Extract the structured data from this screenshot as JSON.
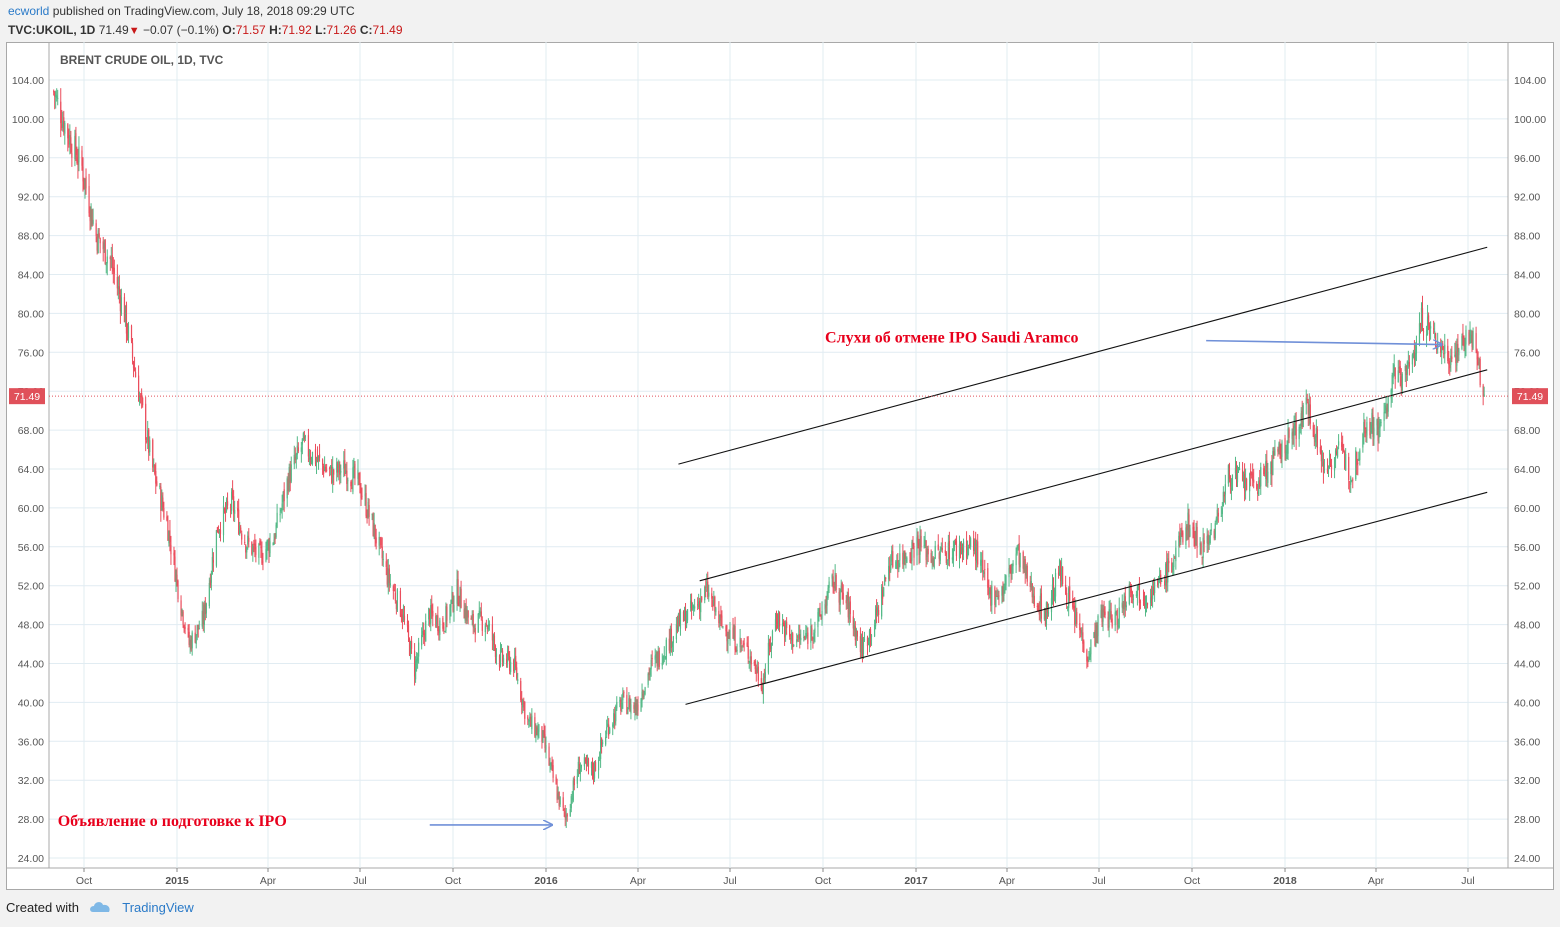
{
  "header": {
    "author": "ecworld",
    "published": " published on TradingView.com, July 18, 2018 09:29 UTC",
    "symbol": "TVC:UKOIL, 1D",
    "last": "71.49",
    "change_arrow": "▼",
    "change": "−0.07 (−0.1%)",
    "o_label": "O:",
    "o_value": "71.57",
    "h_label": "H:",
    "h_value": "71.92",
    "l_label": "L:",
    "l_value": "71.26",
    "c_label": "C:",
    "c_value": "71.49"
  },
  "footer": {
    "created_with": "Created with",
    "brand": "TradingView"
  },
  "colors": {
    "up": "#53b987",
    "down": "#eb4d5c",
    "grid": "#e1ecf2",
    "annotation_text": "#e8001c",
    "arrow": "#7090d8",
    "price_line": "#e0505a"
  },
  "chart_data": {
    "type": "candlestick",
    "title": "BRENT CRUDE OIL, 1D, TVC",
    "ylim": [
      22.0,
      106.0
    ],
    "y_ticks": [
      "104.00",
      "100.00",
      "96.00",
      "92.00",
      "88.00",
      "84.00",
      "80.00",
      "76.00",
      "72.00",
      "68.00",
      "64.00",
      "60.00",
      "56.00",
      "52.00",
      "48.00",
      "44.00",
      "40.00",
      "36.00",
      "32.00",
      "28.00",
      "24.00"
    ],
    "x_ticks": [
      "Oct",
      "2015",
      "Apr",
      "Jul",
      "Oct",
      "2016",
      "Apr",
      "Jul",
      "Oct",
      "2017",
      "Apr",
      "Jul",
      "Oct",
      "2018",
      "Apr",
      "Jul"
    ],
    "last_price_label": "71.49",
    "close_path": [
      [
        "2014-09-01",
        102.8
      ],
      [
        "2014-09-15",
        98.5
      ],
      [
        "2014-09-29",
        95.0
      ],
      [
        "2014-10-13",
        88.0
      ],
      [
        "2014-10-27",
        85.5
      ],
      [
        "2014-11-10",
        80.0
      ],
      [
        "2014-11-24",
        72.0
      ],
      [
        "2014-12-08",
        64.0
      ],
      [
        "2014-12-22",
        58.5
      ],
      [
        "2015-01-05",
        50.0
      ],
      [
        "2015-01-13",
        46.0
      ],
      [
        "2015-01-27",
        48.5
      ],
      [
        "2015-02-10",
        58.0
      ],
      [
        "2015-02-24",
        60.5
      ],
      [
        "2015-03-10",
        56.5
      ],
      [
        "2015-03-24",
        55.0
      ],
      [
        "2015-04-07",
        57.0
      ],
      [
        "2015-04-21",
        63.0
      ],
      [
        "2015-05-05",
        66.5
      ],
      [
        "2015-05-19",
        65.0
      ],
      [
        "2015-06-02",
        63.5
      ],
      [
        "2015-06-16",
        64.0
      ],
      [
        "2015-06-30",
        62.5
      ],
      [
        "2015-07-14",
        58.0
      ],
      [
        "2015-07-28",
        53.0
      ],
      [
        "2015-08-11",
        49.5
      ],
      [
        "2015-08-24",
        43.5
      ],
      [
        "2015-09-07",
        49.0
      ],
      [
        "2015-09-21",
        48.0
      ],
      [
        "2015-10-05",
        51.5
      ],
      [
        "2015-10-19",
        48.0
      ],
      [
        "2015-11-02",
        48.5
      ],
      [
        "2015-11-16",
        44.5
      ],
      [
        "2015-11-30",
        44.0
      ],
      [
        "2015-12-14",
        38.0
      ],
      [
        "2015-12-28",
        36.5
      ],
      [
        "2016-01-11",
        31.0
      ],
      [
        "2016-01-20",
        28.0
      ],
      [
        "2016-02-03",
        33.5
      ],
      [
        "2016-02-17",
        33.0
      ],
      [
        "2016-03-02",
        37.5
      ],
      [
        "2016-03-16",
        40.0
      ],
      [
        "2016-03-30",
        39.5
      ],
      [
        "2016-04-13",
        43.5
      ],
      [
        "2016-04-27",
        45.5
      ],
      [
        "2016-05-11",
        48.0
      ],
      [
        "2016-05-25",
        49.5
      ],
      [
        "2016-06-08",
        51.5
      ],
      [
        "2016-06-22",
        48.0
      ],
      [
        "2016-07-06",
        46.5
      ],
      [
        "2016-07-20",
        45.0
      ],
      [
        "2016-08-02",
        42.0
      ],
      [
        "2016-08-16",
        49.0
      ],
      [
        "2016-08-30",
        46.5
      ],
      [
        "2016-09-13",
        46.5
      ],
      [
        "2016-09-27",
        48.5
      ],
      [
        "2016-10-11",
        52.5
      ],
      [
        "2016-10-25",
        50.0
      ],
      [
        "2016-11-08",
        45.5
      ],
      [
        "2016-11-22",
        48.5
      ],
      [
        "2016-12-06",
        54.5
      ],
      [
        "2016-12-20",
        55.0
      ],
      [
        "2017-01-03",
        56.5
      ],
      [
        "2017-01-17",
        55.0
      ],
      [
        "2017-01-31",
        55.5
      ],
      [
        "2017-02-14",
        56.0
      ],
      [
        "2017-02-28",
        56.0
      ],
      [
        "2017-03-14",
        51.0
      ],
      [
        "2017-03-28",
        51.5
      ],
      [
        "2017-04-11",
        55.5
      ],
      [
        "2017-04-25",
        51.5
      ],
      [
        "2017-05-09",
        49.0
      ],
      [
        "2017-05-23",
        53.5
      ],
      [
        "2017-06-06",
        49.0
      ],
      [
        "2017-06-20",
        45.0
      ],
      [
        "2017-07-04",
        49.0
      ],
      [
        "2017-07-18",
        48.5
      ],
      [
        "2017-08-01",
        52.0
      ],
      [
        "2017-08-15",
        51.0
      ],
      [
        "2017-08-29",
        52.0
      ],
      [
        "2017-09-12",
        54.5
      ],
      [
        "2017-09-26",
        58.5
      ],
      [
        "2017-10-10",
        56.0
      ],
      [
        "2017-10-24",
        58.0
      ],
      [
        "2017-11-07",
        63.5
      ],
      [
        "2017-11-21",
        62.5
      ],
      [
        "2017-12-05",
        62.5
      ],
      [
        "2017-12-19",
        64.5
      ],
      [
        "2018-01-02",
        66.5
      ],
      [
        "2018-01-16",
        69.0
      ],
      [
        "2018-01-25",
        70.5
      ],
      [
        "2018-02-08",
        64.0
      ],
      [
        "2018-02-22",
        66.0
      ],
      [
        "2018-03-08",
        63.5
      ],
      [
        "2018-03-22",
        69.0
      ],
      [
        "2018-04-05",
        68.0
      ],
      [
        "2018-04-19",
        73.5
      ],
      [
        "2018-05-03",
        74.0
      ],
      [
        "2018-05-17",
        79.5
      ],
      [
        "2018-05-31",
        77.0
      ],
      [
        "2018-06-14",
        75.5
      ],
      [
        "2018-06-28",
        77.5
      ],
      [
        "2018-07-05",
        77.5
      ],
      [
        "2018-07-11",
        74.5
      ],
      [
        "2018-07-17",
        71.5
      ]
    ],
    "trend_lines": [
      {
        "from": [
          "2016-05-11",
          64.5
        ],
        "to": [
          "2018-07-20",
          86.8
        ]
      },
      {
        "from": [
          "2016-06-01",
          52.5
        ],
        "to": [
          "2018-07-20",
          74.2
        ]
      },
      {
        "from": [
          "2016-05-18",
          39.8
        ],
        "to": [
          "2018-07-20",
          61.6
        ]
      }
    ],
    "annotations": [
      {
        "text": "Слухи об отмене IPO Saudi Aramco",
        "at": [
          "2016-10-03",
          77.0
        ],
        "arrow_from": [
          "2017-10-15",
          77.2
        ],
        "arrow_to": [
          "2018-06-05",
          76.8
        ]
      },
      {
        "text": "Объявление о подготовке к IPO",
        "at": [
          "2014-09-05",
          27.3
        ],
        "arrow_from": [
          "2015-09-08",
          27.4
        ],
        "arrow_to": [
          "2016-01-07",
          27.4
        ]
      }
    ]
  }
}
